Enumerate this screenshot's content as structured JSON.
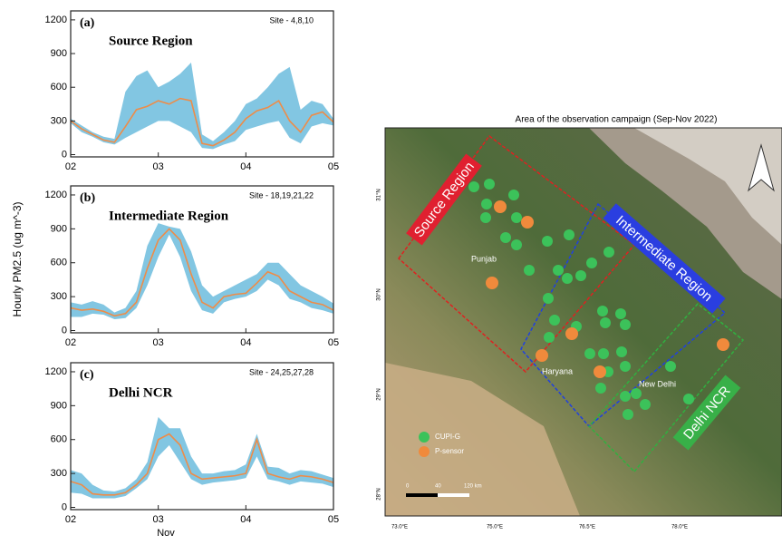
{
  "chart_data": [
    {
      "type": "line",
      "title": "(a)",
      "subtitle": "Source Region",
      "annotation": "Site - 4,8,10",
      "x": [
        2,
        2.125,
        2.25,
        2.375,
        2.5,
        2.625,
        2.75,
        2.875,
        3,
        3.125,
        3.25,
        3.375,
        3.5,
        3.625,
        3.75,
        3.875,
        4,
        4.125,
        4.25,
        4.375,
        4.5,
        4.625,
        4.75,
        4.875,
        5
      ],
      "values": [
        300,
        230,
        180,
        130,
        110,
        250,
        400,
        430,
        480,
        450,
        500,
        480,
        100,
        80,
        130,
        200,
        320,
        390,
        420,
        480,
        300,
        200,
        350,
        380,
        290
      ],
      "band_upper": [
        320,
        260,
        200,
        160,
        140,
        560,
        700,
        750,
        600,
        650,
        720,
        820,
        180,
        120,
        200,
        300,
        450,
        500,
        600,
        720,
        780,
        400,
        480,
        450,
        320
      ],
      "band_lower": [
        280,
        200,
        160,
        110,
        90,
        150,
        200,
        250,
        300,
        300,
        250,
        200,
        60,
        50,
        90,
        120,
        220,
        250,
        280,
        300,
        150,
        100,
        250,
        280,
        260
      ],
      "color": "#ee8c48",
      "band_color": "#82c6e2",
      "xlim": [
        2,
        5
      ],
      "xticks": [
        {
          "value": 2,
          "label": "02"
        },
        {
          "value": 3,
          "label": "03"
        },
        {
          "value": 4,
          "label": "04"
        },
        {
          "value": 5,
          "label": "05"
        }
      ],
      "ylim": [
        -20,
        1280
      ],
      "yticks": [
        0,
        300,
        600,
        900,
        1200
      ]
    },
    {
      "type": "line",
      "title": "(b)",
      "subtitle": "Intermediate Region",
      "annotation": "Site - 18,19,21,22",
      "ylabel": "Hourly PM2.5 (ug m^-3)",
      "x": [
        2,
        2.125,
        2.25,
        2.375,
        2.5,
        2.625,
        2.75,
        2.875,
        3,
        3.125,
        3.25,
        3.375,
        3.5,
        3.625,
        3.75,
        3.875,
        4,
        4.125,
        4.25,
        4.375,
        4.5,
        4.625,
        4.75,
        4.875,
        5
      ],
      "values": [
        200,
        180,
        190,
        170,
        130,
        150,
        250,
        550,
        800,
        900,
        800,
        500,
        250,
        200,
        300,
        320,
        330,
        420,
        520,
        480,
        350,
        300,
        250,
        230,
        180
      ],
      "band_upper": [
        250,
        230,
        260,
        230,
        160,
        200,
        350,
        750,
        950,
        920,
        900,
        700,
        400,
        300,
        350,
        400,
        450,
        500,
        600,
        600,
        500,
        400,
        350,
        300,
        240
      ],
      "band_lower": [
        120,
        120,
        150,
        140,
        100,
        110,
        200,
        400,
        650,
        850,
        650,
        350,
        180,
        150,
        250,
        280,
        300,
        350,
        450,
        400,
        280,
        250,
        200,
        180,
        150
      ],
      "color": "#ee8c48",
      "band_color": "#82c6e2",
      "xlim": [
        2,
        5
      ],
      "xticks": [
        {
          "value": 2,
          "label": "02"
        },
        {
          "value": 3,
          "label": "03"
        },
        {
          "value": 4,
          "label": "04"
        },
        {
          "value": 5,
          "label": "05"
        }
      ],
      "ylim": [
        -20,
        1280
      ],
      "yticks": [
        0,
        300,
        600,
        900,
        1200
      ]
    },
    {
      "type": "line",
      "title": "(c)",
      "subtitle": "Delhi NCR",
      "annotation": "Site - 24,25,27,28",
      "xlabel": "Nov",
      "x": [
        2,
        2.125,
        2.25,
        2.375,
        2.5,
        2.625,
        2.75,
        2.875,
        3,
        3.125,
        3.25,
        3.375,
        3.5,
        3.625,
        3.75,
        3.875,
        4,
        4.125,
        4.25,
        4.375,
        4.5,
        4.625,
        4.75,
        4.875,
        5
      ],
      "values": [
        230,
        200,
        120,
        110,
        110,
        130,
        200,
        300,
        600,
        650,
        550,
        300,
        250,
        260,
        270,
        280,
        300,
        600,
        300,
        270,
        250,
        280,
        270,
        250,
        220
      ],
      "band_upper": [
        330,
        300,
        200,
        150,
        140,
        170,
        250,
        400,
        800,
        700,
        700,
        450,
        300,
        300,
        320,
        330,
        380,
        650,
        360,
        350,
        300,
        330,
        320,
        290,
        260
      ],
      "band_lower": [
        130,
        120,
        80,
        80,
        80,
        100,
        170,
        250,
        450,
        550,
        400,
        250,
        200,
        220,
        230,
        240,
        260,
        450,
        250,
        230,
        200,
        230,
        220,
        210,
        180
      ],
      "color": "#ee8c48",
      "band_color": "#82c6e2",
      "xlim": [
        2,
        5
      ],
      "xticks": [
        {
          "value": 2,
          "label": "02"
        },
        {
          "value": 3,
          "label": "03"
        },
        {
          "value": 4,
          "label": "04"
        },
        {
          "value": 5,
          "label": "05"
        }
      ],
      "ylim": [
        -20,
        1280
      ],
      "yticks": [
        0,
        300,
        600,
        900,
        1200
      ]
    }
  ],
  "map": {
    "title": "Area of the observation campaign (Sep-Nov 2022)",
    "regions": [
      "Source Region",
      "Intermediate Region",
      "Delhi NCR"
    ],
    "places": [
      "Punjab",
      "Haryana",
      "New Delhi"
    ],
    "legend": [
      {
        "label": "CUPI-G",
        "color": "#3cc25a"
      },
      {
        "label": "P-sensor",
        "color": "#f08a3c"
      }
    ],
    "lon_labels": [
      "73.0°E",
      "75.0°E",
      "76.5°E",
      "78.0°E"
    ],
    "lat_labels": [
      "31°N",
      "30°N",
      "29°N",
      "28°N"
    ],
    "scale_labels": [
      "0",
      "40",
      "120 km"
    ]
  }
}
